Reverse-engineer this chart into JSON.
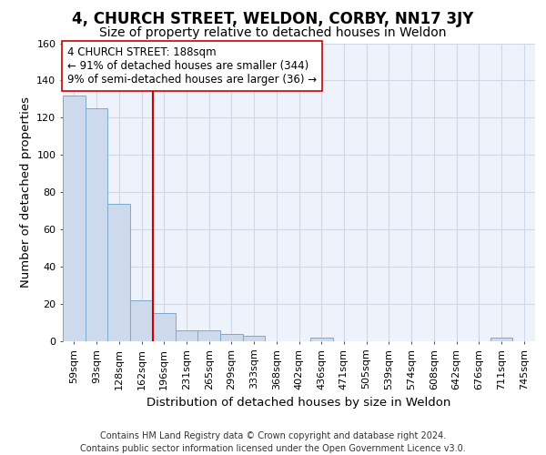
{
  "title": "4, CHURCH STREET, WELDON, CORBY, NN17 3JY",
  "subtitle": "Size of property relative to detached houses in Weldon",
  "xlabel": "Distribution of detached houses by size in Weldon",
  "ylabel": "Number of detached properties",
  "footer_line1": "Contains HM Land Registry data © Crown copyright and database right 2024.",
  "footer_line2": "Contains public sector information licensed under the Open Government Licence v3.0.",
  "bin_labels": [
    "59sqm",
    "93sqm",
    "128sqm",
    "162sqm",
    "196sqm",
    "231sqm",
    "265sqm",
    "299sqm",
    "333sqm",
    "368sqm",
    "402sqm",
    "436sqm",
    "471sqm",
    "505sqm",
    "539sqm",
    "574sqm",
    "608sqm",
    "642sqm",
    "676sqm",
    "711sqm",
    "745sqm"
  ],
  "bar_values": [
    132,
    125,
    74,
    22,
    15,
    6,
    6,
    4,
    3,
    0,
    0,
    2,
    0,
    0,
    0,
    0,
    0,
    0,
    0,
    2,
    0
  ],
  "bar_color": "#ccdaec",
  "bar_edge_color": "#7da8cc",
  "vline_color": "#cc0000",
  "annotation_text": "4 CHURCH STREET: 188sqm\n← 91% of detached houses are smaller (344)\n9% of semi-detached houses are larger (36) →",
  "annotation_box_color": "#ffffff",
  "annotation_box_edge": "#cc0000",
  "ylim": [
    0,
    160
  ],
  "yticks": [
    0,
    20,
    40,
    60,
    80,
    100,
    120,
    140,
    160
  ],
  "background_color": "#eef2fa",
  "grid_color": "#d0d8e8",
  "title_fontsize": 12,
  "subtitle_fontsize": 10,
  "axis_label_fontsize": 9.5,
  "tick_fontsize": 8,
  "annotation_fontsize": 8.5,
  "footer_fontsize": 7
}
